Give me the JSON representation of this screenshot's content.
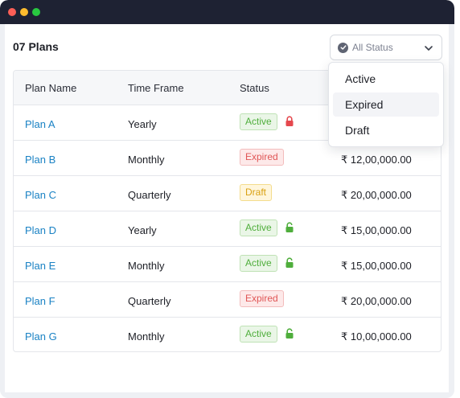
{
  "header": {
    "title": "07 Plans"
  },
  "filter": {
    "label": "All Status",
    "options": [
      "Active",
      "Expired",
      "Draft"
    ]
  },
  "table": {
    "columns": [
      "Plan Name",
      "Time Frame",
      "Status"
    ],
    "rows": [
      {
        "name": "Plan A",
        "frame": "Yearly",
        "status": "Active",
        "lock": "red",
        "amount": ""
      },
      {
        "name": "Plan B",
        "frame": "Monthly",
        "status": "Expired",
        "lock": "",
        "amount": "₹ 12,00,000.00"
      },
      {
        "name": "Plan C",
        "frame": "Quarterly",
        "status": "Draft",
        "lock": "",
        "amount": "₹ 20,00,000.00"
      },
      {
        "name": "Plan D",
        "frame": "Yearly",
        "status": "Active",
        "lock": "green",
        "amount": "₹ 15,00,000.00"
      },
      {
        "name": "Plan E",
        "frame": "Monthly",
        "status": "Active",
        "lock": "green",
        "amount": "₹ 15,00,000.00"
      },
      {
        "name": "Plan F",
        "frame": "Quarterly",
        "status": "Expired",
        "lock": "",
        "amount": "₹ 20,00,000.00"
      },
      {
        "name": "Plan G",
        "frame": "Monthly",
        "status": "Active",
        "lock": "green",
        "amount": "₹ 10,00,000.00"
      }
    ]
  },
  "colors": {
    "link": "#1a82c4",
    "active": "#4fae3c",
    "expired": "#e05656",
    "draft": "#d9a113",
    "lock_red": "#e5484d",
    "lock_green": "#4fae3c",
    "titlebar": "#1e2233"
  },
  "icons": {
    "filter_check": "check-circle-icon",
    "filter_chevron": "chevron-down-icon",
    "lock": "lock-icon"
  }
}
